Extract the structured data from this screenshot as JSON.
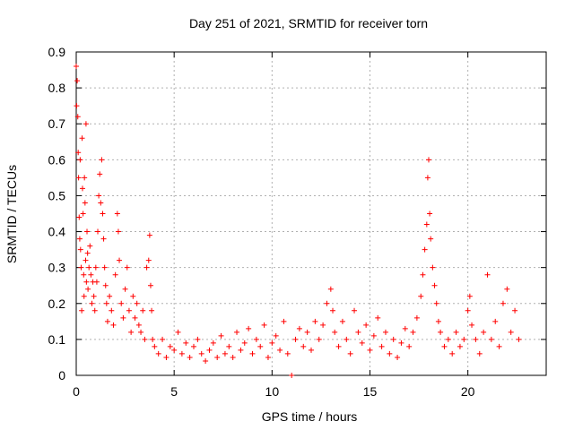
{
  "chart_data": {
    "type": "scatter",
    "title": "Day 251 of 2021, SRMTID for receiver torn",
    "xlabel": "GPS time / hours",
    "ylabel": "SRMTID / TECUs",
    "xlim": [
      0,
      24
    ],
    "ylim": [
      0,
      0.9
    ],
    "x_ticks": [
      0,
      5,
      10,
      15,
      20
    ],
    "y_ticks": [
      0,
      0.1,
      0.2,
      0.3,
      0.4,
      0.5,
      0.6,
      0.7,
      0.8,
      0.9
    ],
    "x_tick_labels": [
      "0",
      "5",
      "10",
      "15",
      "20"
    ],
    "y_tick_labels": [
      "0",
      "0.1",
      "0.2",
      "0.3",
      "0.4",
      "0.5",
      "0.6",
      "0.7",
      "0.8",
      "0.9"
    ],
    "grid": true,
    "marker": "+",
    "color": "#ff0000",
    "series": [
      {
        "name": "SRMTID",
        "points": [
          [
            0.0,
            0.86
          ],
          [
            0.02,
            0.75
          ],
          [
            0.05,
            0.82
          ],
          [
            0.08,
            0.72
          ],
          [
            0.1,
            0.62
          ],
          [
            0.12,
            0.55
          ],
          [
            0.15,
            0.44
          ],
          [
            0.18,
            0.38
          ],
          [
            0.2,
            0.6
          ],
          [
            0.22,
            0.35
          ],
          [
            0.25,
            0.3
          ],
          [
            0.28,
            0.18
          ],
          [
            0.3,
            0.66
          ],
          [
            0.32,
            0.52
          ],
          [
            0.35,
            0.45
          ],
          [
            0.38,
            0.28
          ],
          [
            0.4,
            0.22
          ],
          [
            0.42,
            0.55
          ],
          [
            0.45,
            0.48
          ],
          [
            0.48,
            0.32
          ],
          [
            0.5,
            0.7
          ],
          [
            0.52,
            0.26
          ],
          [
            0.55,
            0.4
          ],
          [
            0.58,
            0.34
          ],
          [
            0.6,
            0.24
          ],
          [
            0.65,
            0.3
          ],
          [
            0.7,
            0.36
          ],
          [
            0.75,
            0.28
          ],
          [
            0.8,
            0.2
          ],
          [
            0.85,
            0.26
          ],
          [
            0.9,
            0.22
          ],
          [
            0.95,
            0.18
          ],
          [
            1.0,
            0.3
          ],
          [
            1.05,
            0.26
          ],
          [
            1.1,
            0.4
          ],
          [
            1.15,
            0.5
          ],
          [
            1.2,
            0.56
          ],
          [
            1.25,
            0.48
          ],
          [
            1.3,
            0.6
          ],
          [
            1.35,
            0.45
          ],
          [
            1.4,
            0.38
          ],
          [
            1.45,
            0.3
          ],
          [
            1.5,
            0.25
          ],
          [
            1.55,
            0.2
          ],
          [
            1.6,
            0.15
          ],
          [
            1.7,
            0.22
          ],
          [
            1.8,
            0.18
          ],
          [
            1.9,
            0.14
          ],
          [
            2.0,
            0.28
          ],
          [
            2.1,
            0.45
          ],
          [
            2.15,
            0.4
          ],
          [
            2.2,
            0.32
          ],
          [
            2.3,
            0.2
          ],
          [
            2.4,
            0.16
          ],
          [
            2.5,
            0.24
          ],
          [
            2.6,
            0.3
          ],
          [
            2.7,
            0.18
          ],
          [
            2.8,
            0.12
          ],
          [
            2.9,
            0.22
          ],
          [
            3.0,
            0.16
          ],
          [
            3.1,
            0.2
          ],
          [
            3.2,
            0.14
          ],
          [
            3.3,
            0.12
          ],
          [
            3.4,
            0.18
          ],
          [
            3.5,
            0.1
          ],
          [
            3.6,
            0.3
          ],
          [
            3.7,
            0.32
          ],
          [
            3.75,
            0.39
          ],
          [
            3.8,
            0.25
          ],
          [
            3.85,
            0.18
          ],
          [
            3.9,
            0.1
          ],
          [
            4.0,
            0.08
          ],
          [
            4.2,
            0.06
          ],
          [
            4.4,
            0.1
          ],
          [
            4.6,
            0.05
          ],
          [
            4.8,
            0.08
          ],
          [
            5.0,
            0.07
          ],
          [
            5.2,
            0.12
          ],
          [
            5.4,
            0.06
          ],
          [
            5.6,
            0.09
          ],
          [
            5.8,
            0.05
          ],
          [
            6.0,
            0.08
          ],
          [
            6.2,
            0.1
          ],
          [
            6.4,
            0.06
          ],
          [
            6.6,
            0.04
          ],
          [
            6.8,
            0.07
          ],
          [
            7.0,
            0.09
          ],
          [
            7.2,
            0.05
          ],
          [
            7.4,
            0.11
          ],
          [
            7.6,
            0.06
          ],
          [
            7.8,
            0.08
          ],
          [
            8.0,
            0.05
          ],
          [
            8.2,
            0.12
          ],
          [
            8.4,
            0.07
          ],
          [
            8.6,
            0.09
          ],
          [
            8.8,
            0.13
          ],
          [
            9.0,
            0.06
          ],
          [
            9.2,
            0.1
          ],
          [
            9.4,
            0.08
          ],
          [
            9.6,
            0.14
          ],
          [
            9.8,
            0.05
          ],
          [
            10.0,
            0.09
          ],
          [
            10.2,
            0.11
          ],
          [
            10.4,
            0.07
          ],
          [
            10.6,
            0.15
          ],
          [
            10.8,
            0.06
          ],
          [
            11.0,
            0.0
          ],
          [
            11.2,
            0.1
          ],
          [
            11.4,
            0.13
          ],
          [
            11.6,
            0.08
          ],
          [
            11.8,
            0.12
          ],
          [
            12.0,
            0.07
          ],
          [
            12.2,
            0.15
          ],
          [
            12.4,
            0.1
          ],
          [
            12.6,
            0.14
          ],
          [
            12.8,
            0.2
          ],
          [
            13.0,
            0.24
          ],
          [
            13.1,
            0.18
          ],
          [
            13.2,
            0.12
          ],
          [
            13.4,
            0.08
          ],
          [
            13.6,
            0.15
          ],
          [
            13.8,
            0.1
          ],
          [
            14.0,
            0.06
          ],
          [
            14.2,
            0.18
          ],
          [
            14.4,
            0.12
          ],
          [
            14.6,
            0.09
          ],
          [
            14.8,
            0.14
          ],
          [
            15.0,
            0.07
          ],
          [
            15.2,
            0.11
          ],
          [
            15.4,
            0.16
          ],
          [
            15.6,
            0.08
          ],
          [
            15.8,
            0.12
          ],
          [
            16.0,
            0.06
          ],
          [
            16.2,
            0.1
          ],
          [
            16.4,
            0.05
          ],
          [
            16.6,
            0.09
          ],
          [
            16.8,
            0.13
          ],
          [
            17.0,
            0.08
          ],
          [
            17.2,
            0.12
          ],
          [
            17.4,
            0.16
          ],
          [
            17.6,
            0.22
          ],
          [
            17.7,
            0.28
          ],
          [
            17.8,
            0.35
          ],
          [
            17.9,
            0.42
          ],
          [
            17.95,
            0.55
          ],
          [
            18.0,
            0.6
          ],
          [
            18.05,
            0.45
          ],
          [
            18.1,
            0.38
          ],
          [
            18.2,
            0.3
          ],
          [
            18.3,
            0.25
          ],
          [
            18.4,
            0.2
          ],
          [
            18.5,
            0.15
          ],
          [
            18.6,
            0.12
          ],
          [
            18.8,
            0.08
          ],
          [
            19.0,
            0.1
          ],
          [
            19.2,
            0.06
          ],
          [
            19.4,
            0.12
          ],
          [
            19.6,
            0.08
          ],
          [
            19.8,
            0.1
          ],
          [
            20.0,
            0.18
          ],
          [
            20.1,
            0.22
          ],
          [
            20.2,
            0.14
          ],
          [
            20.4,
            0.1
          ],
          [
            20.6,
            0.06
          ],
          [
            20.8,
            0.12
          ],
          [
            21.0,
            0.28
          ],
          [
            21.2,
            0.1
          ],
          [
            21.4,
            0.15
          ],
          [
            21.6,
            0.08
          ],
          [
            21.8,
            0.2
          ],
          [
            22.0,
            0.24
          ],
          [
            22.2,
            0.12
          ],
          [
            22.4,
            0.18
          ],
          [
            22.6,
            0.1
          ]
        ]
      }
    ]
  }
}
